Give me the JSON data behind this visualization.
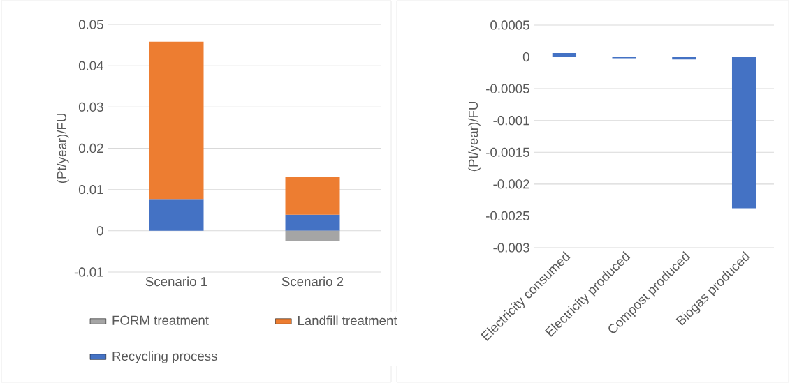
{
  "chart_data": [
    {
      "type": "bar",
      "stacked": true,
      "categories": [
        "Scenario 1",
        "Scenario 2"
      ],
      "ylabel": "(Pt/year)/FU",
      "ylim": [
        -0.01,
        0.05
      ],
      "yticks": [
        -0.01,
        0,
        0.01,
        0.02,
        0.03,
        0.04,
        0.05
      ],
      "grid": "y",
      "legend": "bottom",
      "series": [
        {
          "name": "Recycling process",
          "color": "#4472c4",
          "values": [
            0.0077,
            0.0039
          ]
        },
        {
          "name": "Landfill treatment",
          "color": "#ed7d31",
          "values": [
            0.0381,
            0.0092
          ]
        },
        {
          "name": "FORM treatment",
          "color": "#a5a5a5",
          "values": [
            null,
            -0.0025
          ]
        }
      ]
    },
    {
      "type": "bar",
      "categories": [
        "Electricity consumed",
        "Electricity produced",
        "Compost produced",
        "Biogas produced"
      ],
      "values": [
        6e-05,
        -2e-05,
        -4e-05,
        -0.00238
      ],
      "color": "#4472c4",
      "ylabel": "(Pt/year)/FU",
      "ylim": [
        -0.003,
        0.0005
      ],
      "yticks": [
        -0.003,
        -0.0025,
        -0.002,
        -0.0015,
        -0.001,
        -0.0005,
        0,
        0.0005
      ],
      "grid": "y"
    }
  ]
}
